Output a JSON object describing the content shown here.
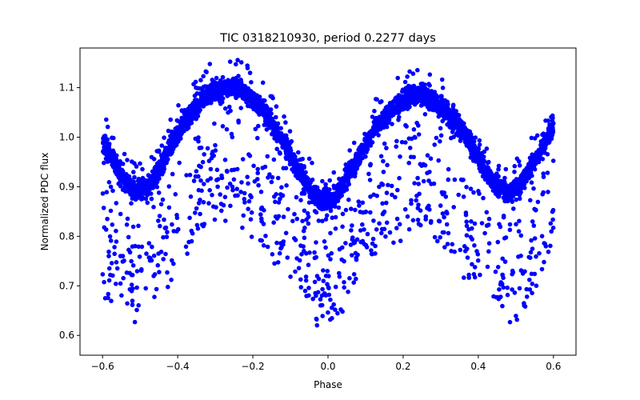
{
  "chart_data": {
    "type": "scatter",
    "title": "TIC 0318210930, period 0.2277 days",
    "xlabel": "Phase",
    "ylabel": "Normalized PDC flux",
    "xlim": [
      -0.66,
      0.66
    ],
    "ylim": [
      0.56,
      1.18
    ],
    "xticks": [
      -0.6,
      -0.4,
      -0.2,
      0.0,
      0.2,
      0.4,
      0.6
    ],
    "xtick_labels": [
      "−0.6",
      "−0.4",
      "−0.2",
      "0.0",
      "0.2",
      "0.4",
      "0.6"
    ],
    "yticks": [
      0.6,
      0.7,
      0.8,
      0.9,
      1.0,
      1.1
    ],
    "ytick_labels": [
      "0.6",
      "0.7",
      "0.8",
      "0.9",
      "1.0",
      "1.1"
    ],
    "grid": false,
    "marker_color": "#0000ff",
    "series": [
      {
        "name": "main light curve",
        "description": "dense band of phased flux points",
        "x": [
          -0.6,
          -0.57,
          -0.54,
          -0.51,
          -0.48,
          -0.45,
          -0.42,
          -0.39,
          -0.36,
          -0.33,
          -0.3,
          -0.27,
          -0.24,
          -0.21,
          -0.18,
          -0.15,
          -0.12,
          -0.09,
          -0.06,
          -0.03,
          0.0,
          0.03,
          0.06,
          0.09,
          0.12,
          0.15,
          0.18,
          0.21,
          0.24,
          0.27,
          0.3,
          0.33,
          0.36,
          0.39,
          0.42,
          0.45,
          0.48,
          0.51,
          0.54,
          0.57,
          0.6
        ],
        "y": [
          0.99,
          0.95,
          0.91,
          0.89,
          0.9,
          0.93,
          0.98,
          1.02,
          1.05,
          1.08,
          1.095,
          1.1,
          1.098,
          1.085,
          1.06,
          1.03,
          0.99,
          0.95,
          0.91,
          0.88,
          0.87,
          0.89,
          0.93,
          0.97,
          1.01,
          1.04,
          1.065,
          1.08,
          1.085,
          1.08,
          1.065,
          1.04,
          1.01,
          0.97,
          0.93,
          0.9,
          0.89,
          0.9,
          0.94,
          0.98,
          1.02
        ]
      },
      {
        "name": "scattered low-flux points",
        "description": "sparse points below the main band, lower envelope",
        "x": [
          -0.6,
          -0.55,
          -0.5,
          -0.45,
          -0.4,
          -0.35,
          -0.3,
          -0.25,
          -0.2,
          -0.15,
          -0.1,
          -0.05,
          0.0,
          0.05,
          0.1,
          0.15,
          0.2,
          0.25,
          0.3,
          0.35,
          0.4,
          0.45,
          0.5,
          0.55,
          0.6
        ],
        "y": [
          0.68,
          0.66,
          0.6,
          0.69,
          0.72,
          0.8,
          0.82,
          0.85,
          0.8,
          0.76,
          0.72,
          0.65,
          0.6,
          0.66,
          0.74,
          0.78,
          0.8,
          0.82,
          0.79,
          0.73,
          0.68,
          0.64,
          0.62,
          0.7,
          0.74
        ]
      }
    ]
  }
}
